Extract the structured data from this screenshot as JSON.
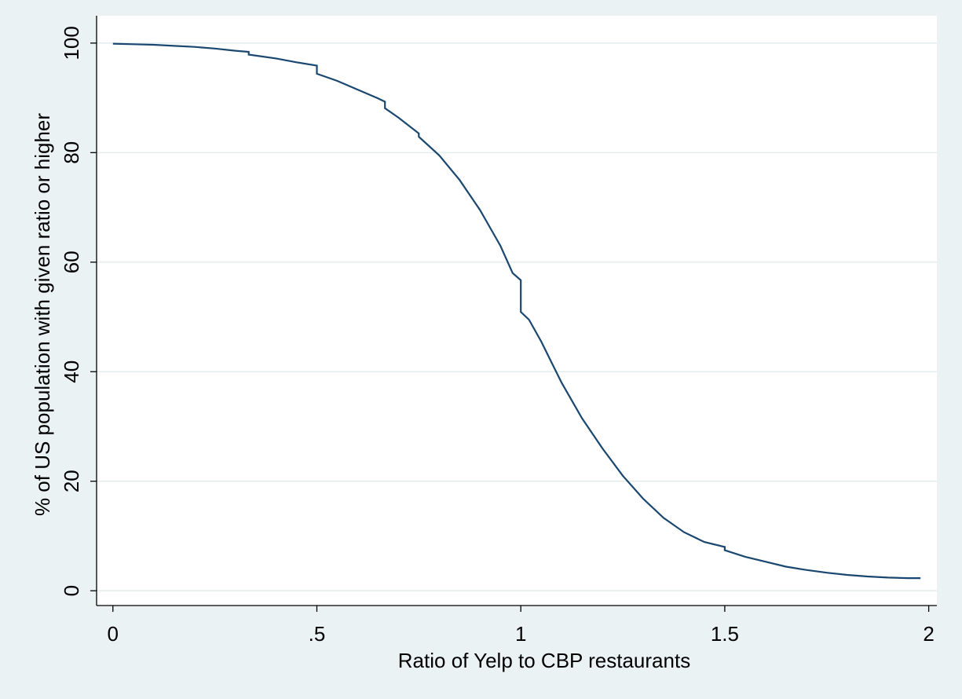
{
  "colors": {
    "background": "#eaf2f3",
    "plot_area": "#ffffff",
    "gridline": "#e3eded",
    "axis": "#000000",
    "line": "#1a476f"
  },
  "chart_data": {
    "type": "line",
    "title": "",
    "xlabel": "Ratio of Yelp to CBP restaurants",
    "ylabel": "% of US population with given ratio or higher",
    "xlim": [
      -0.04,
      2.02
    ],
    "ylim": [
      -2.7,
      105
    ],
    "xticks": [
      0,
      0.5,
      1,
      1.5,
      2
    ],
    "xtick_labels": [
      "0",
      ".5",
      "1",
      "1.5",
      "2"
    ],
    "yticks": [
      0,
      20,
      40,
      60,
      80,
      100
    ],
    "ytick_labels": [
      "0",
      "20",
      "40",
      "60",
      "80",
      "100"
    ],
    "grid": "horizontal",
    "legend": "none",
    "series": [
      {
        "values_x": [
          0,
          0.05,
          0.1,
          0.15,
          0.2,
          0.25,
          0.3,
          0.333,
          0.333,
          0.4,
          0.45,
          0.5,
          0.5,
          0.55,
          0.6,
          0.65,
          0.667,
          0.667,
          0.7,
          0.75,
          0.75,
          0.8,
          0.85,
          0.9,
          0.95,
          0.98,
          1.0,
          1.0,
          1.02,
          1.05,
          1.1,
          1.15,
          1.2,
          1.25,
          1.3,
          1.35,
          1.4,
          1.45,
          1.5,
          1.5,
          1.55,
          1.6,
          1.65,
          1.7,
          1.75,
          1.8,
          1.85,
          1.9,
          1.95,
          1.98
        ],
        "values_y": [
          99.9,
          99.8,
          99.7,
          99.5,
          99.3,
          99.0,
          98.6,
          98.4,
          97.9,
          97.2,
          96.5,
          95.9,
          94.4,
          93.1,
          91.5,
          89.9,
          89.3,
          88.1,
          86.4,
          83.5,
          82.9,
          79.5,
          75.0,
          69.5,
          63.0,
          58.0,
          56.7,
          50.9,
          49.5,
          45.5,
          38.0,
          31.5,
          26.0,
          21.0,
          16.8,
          13.3,
          10.7,
          8.9,
          8.0,
          7.4,
          6.2,
          5.3,
          4.4,
          3.8,
          3.3,
          2.9,
          2.6,
          2.4,
          2.3,
          2.3
        ]
      }
    ]
  }
}
